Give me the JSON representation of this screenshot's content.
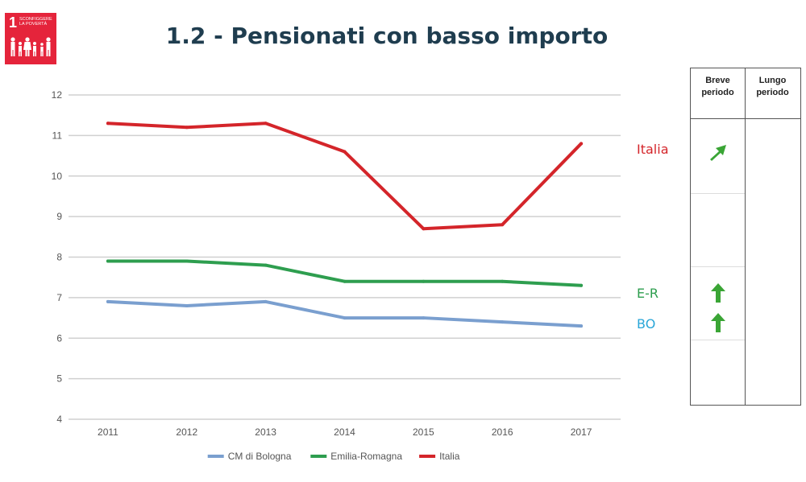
{
  "logo": {
    "number": "1",
    "text": "SCONFIGGERE\nLA POVERTÀ",
    "color": "#e5243b",
    "icon": "people-family-icon"
  },
  "page_title": "1.2 - Pensionati con basso importo",
  "chart_data": {
    "type": "line",
    "title": "",
    "xlabel": "",
    "ylabel": "",
    "categories": [
      "2011",
      "2012",
      "2013",
      "2014",
      "2015",
      "2016",
      "2017"
    ],
    "ylim": [
      4,
      12
    ],
    "yticks": [
      "4",
      "5",
      "6",
      "7",
      "8",
      "9",
      "10",
      "11",
      "12"
    ],
    "grid": true,
    "legend_position": "bottom",
    "series": [
      {
        "name": "CM di Bologna",
        "color": "#7a9fcf",
        "values": [
          6.9,
          6.8,
          6.9,
          6.5,
          6.5,
          6.4,
          6.3
        ]
      },
      {
        "name": "Emilia-Romagna",
        "color": "#2e9e4f",
        "values": [
          7.9,
          7.9,
          7.8,
          7.4,
          7.4,
          7.4,
          7.3
        ]
      },
      {
        "name": "Italia",
        "color": "#d4252a",
        "values": [
          11.3,
          11.2,
          11.3,
          10.6,
          8.7,
          8.8,
          10.8
        ]
      }
    ]
  },
  "series_labels": [
    {
      "text": "Italia",
      "color": "#d4252a",
      "value": 10.65
    },
    {
      "text": "E-R",
      "color": "#2e9e4f",
      "value": 7.1
    },
    {
      "text": "BO",
      "color": "#29a6d8",
      "value": 6.35
    }
  ],
  "trend_table": {
    "headers": [
      "Breve\nperiodo",
      "Lungo\nperiodo"
    ],
    "arrow_color": "#3aa535",
    "rows": [
      {
        "label": "Italia",
        "short_term": "arrow-up-right-icon"
      },
      {
        "label": "E-R",
        "short_term": "arrow-up-icon"
      },
      {
        "label": "BO",
        "short_term": "arrow-up-icon"
      }
    ]
  }
}
